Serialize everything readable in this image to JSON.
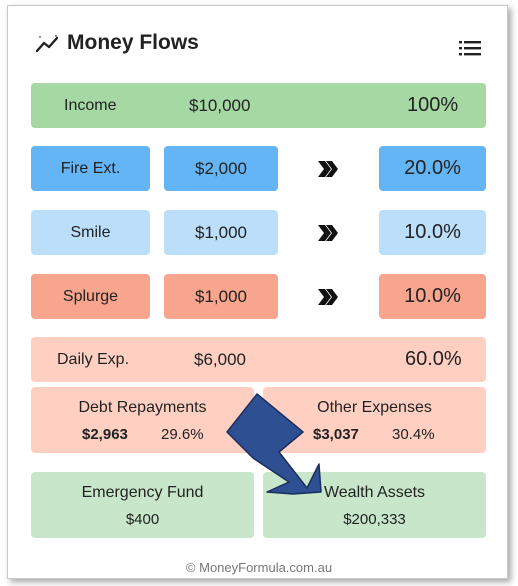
{
  "header": {
    "title": "Money Flows",
    "chart_icon": "sparkline-icon",
    "menu_icon": "hamburger-menu-icon"
  },
  "income": {
    "label": "Income",
    "amount": "$10,000",
    "percent": "100%"
  },
  "splits": [
    {
      "label": "Fire Ext.",
      "amount": "$2,000",
      "percent": "20.0%"
    },
    {
      "label": "Smile",
      "amount": "$1,000",
      "percent": "10.0%"
    },
    {
      "label": "Splurge",
      "amount": "$1,000",
      "percent": "10.0%"
    }
  ],
  "daily": {
    "label": "Daily Exp.",
    "amount": "$6,000",
    "percent": "60.0%",
    "debt": {
      "title": "Debt Repayments",
      "amount": "$2,963",
      "percent": "29.6%"
    },
    "other": {
      "title": "Other Expenses",
      "amount": "$3,037",
      "percent": "30.4%"
    }
  },
  "funds": {
    "emergency": {
      "title": "Emergency Fund",
      "amount": "$400"
    },
    "wealth": {
      "title": "Wealth Assets",
      "amount": "$200,333"
    }
  },
  "footer": {
    "text": "© MoneyFormula.com.au"
  },
  "colors": {
    "income": "#a5d8a3",
    "fire": "#64b5f6",
    "smile": "#bbdefb",
    "splurge": "#f8a58e",
    "daily": "#ffd0c2",
    "funds": "#c8e6c9",
    "arrow": "#2e4f92"
  }
}
